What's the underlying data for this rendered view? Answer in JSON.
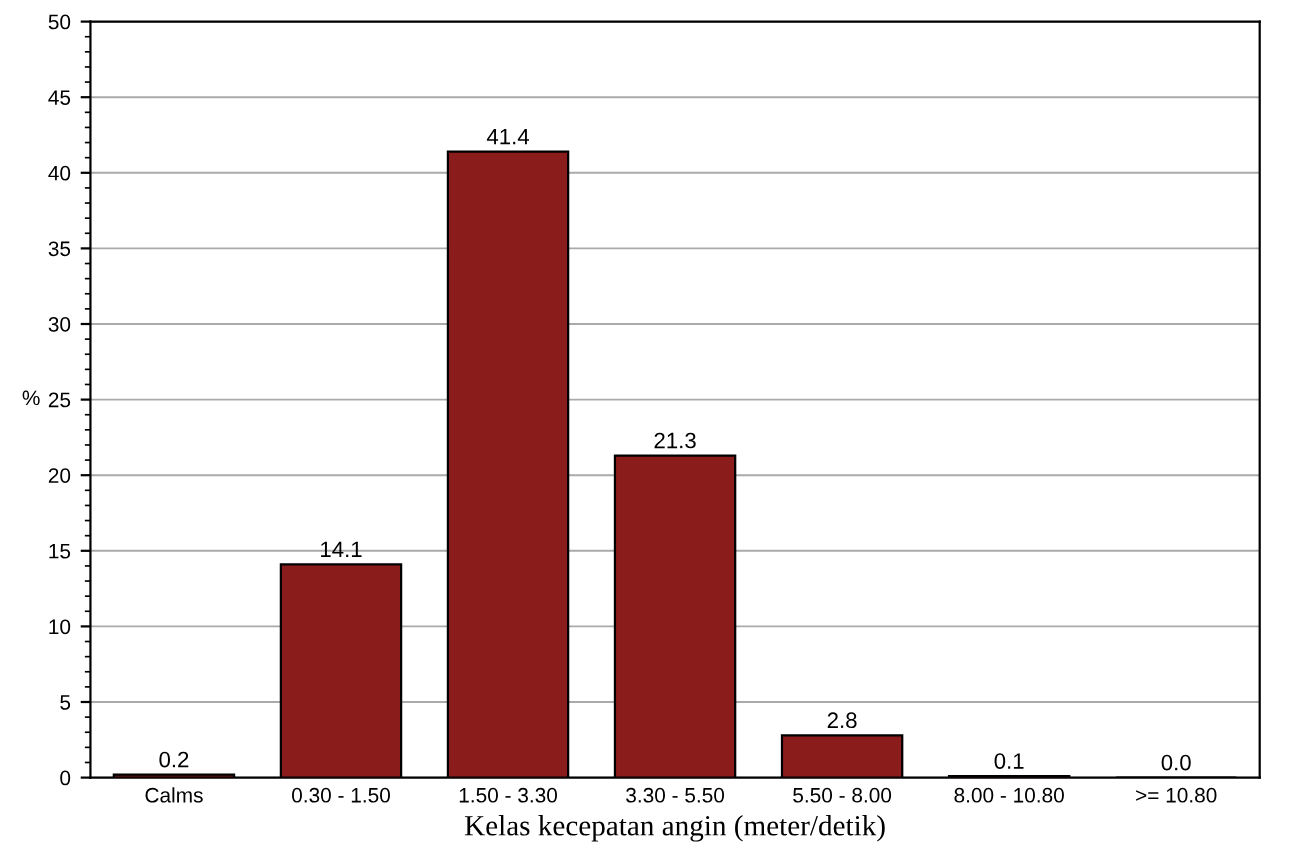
{
  "chart_data": {
    "type": "bar",
    "xlabel": "Kelas kecepatan angin (meter/detik)",
    "ylabel": "%",
    "categories": [
      "Calms",
      "0.30 - 1.50",
      "1.50 - 3.30",
      "3.30 - 5.50",
      "5.50 - 8.00",
      "8.00 - 10.80",
      ">= 10.80"
    ],
    "values": [
      0.2,
      14.1,
      41.4,
      21.3,
      2.8,
      0.1,
      0.0
    ],
    "value_labels": [
      "0.2",
      "14.1",
      "41.4",
      "21.3",
      "2.8",
      "0.1",
      "0.0"
    ],
    "color": "#8b1c1c",
    "ylim": [
      0,
      50
    ],
    "yticks": [
      0,
      5,
      10,
      15,
      20,
      25,
      30,
      35,
      40,
      45,
      50
    ],
    "grid": "y",
    "legend": false
  }
}
